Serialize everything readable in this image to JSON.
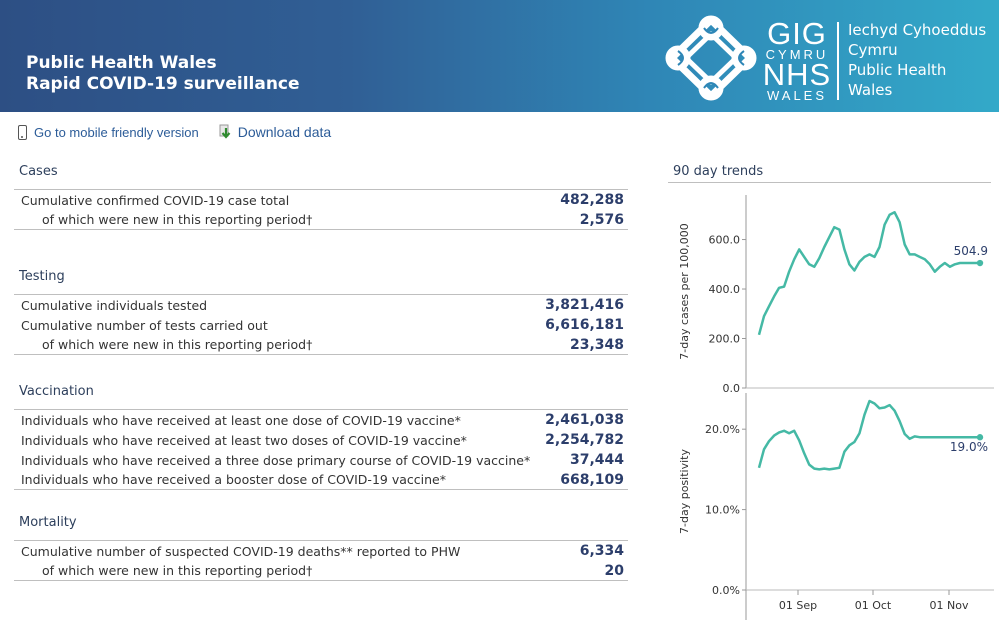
{
  "header": {
    "title_line1": "Public Health Wales",
    "title_line2": "Rapid COVID-19 surveillance",
    "logo_text": {
      "gig": "GIG",
      "cymru": "CYMRU",
      "nhs": "NHS",
      "wales": "WALES"
    },
    "org_names": [
      "Iechyd Cyhoeddus",
      "Cymru",
      "Public Health",
      "Wales"
    ]
  },
  "links": {
    "mobile": "Go to mobile friendly version",
    "download": "Download data"
  },
  "sections": {
    "cases": {
      "title": "Cases",
      "rows": [
        {
          "label": "Cumulative confirmed COVID-19 case total",
          "value": "482,288"
        },
        {
          "label": "of which were new in this reporting period†",
          "value": "2,576"
        }
      ]
    },
    "testing": {
      "title": "Testing",
      "rows": [
        {
          "label": "Cumulative individuals tested",
          "value": "3,821,416"
        },
        {
          "label": "Cumulative number of tests carried out",
          "value": "6,616,181"
        },
        {
          "label": "of which were new in this reporting period†",
          "value": "23,348"
        }
      ]
    },
    "vaccination": {
      "title": "Vaccination",
      "rows": [
        {
          "label": "Individuals who have received at least one dose of COVID-19 vaccine*",
          "value": "2,461,038"
        },
        {
          "label": "Individuals who have received at least two doses of COVID-19 vaccine*",
          "value": "2,254,782"
        },
        {
          "label": "Individuals who have received a three dose primary course of COVID-19 vaccine*",
          "value": "37,444"
        },
        {
          "label": "Individuals who have received a booster dose of COVID-19 vaccine*",
          "value": "668,109"
        }
      ]
    },
    "mortality": {
      "title": "Mortality",
      "rows": [
        {
          "label": "Cumulative number of suspected COVID-19 deaths** reported to PHW",
          "value": "6,334"
        },
        {
          "label": "of which were new in this reporting period†",
          "value": "20"
        }
      ]
    }
  },
  "trends": {
    "title": "90 day trends"
  },
  "chart_data": [
    {
      "type": "line",
      "title": "90 day trends",
      "ylabel": "7-day cases per 100,000",
      "ylim": [
        0,
        780
      ],
      "yticks": [
        0,
        200,
        400,
        600
      ],
      "ytick_labels": [
        "0.0",
        "200.0",
        "400.0",
        "600.0"
      ],
      "xtick_labels": [
        "01 Sep",
        "01 Oct",
        "01 Nov"
      ],
      "end_label": "504.9",
      "color": "#45b9a5",
      "x": [
        0,
        2,
        4,
        6,
        8,
        10,
        12,
        14,
        16,
        18,
        20,
        22,
        24,
        26,
        28,
        30,
        32,
        34,
        36,
        38,
        40,
        42,
        44,
        46,
        48,
        50,
        52,
        54,
        56,
        58,
        60,
        62,
        64,
        66,
        68,
        70,
        72,
        74,
        76,
        78,
        80,
        82,
        84,
        86,
        88
      ],
      "values": [
        215,
        290,
        330,
        370,
        405,
        410,
        470,
        520,
        560,
        530,
        500,
        490,
        525,
        570,
        610,
        650,
        640,
        560,
        500,
        475,
        510,
        530,
        540,
        530,
        570,
        660,
        700,
        710,
        670,
        580,
        540,
        540,
        530,
        520,
        500,
        470,
        490,
        505,
        490,
        500,
        505,
        505,
        505,
        505,
        505
      ]
    },
    {
      "type": "line",
      "ylabel": "7-day positivity",
      "ylim": [
        0,
        24.5
      ],
      "yticks": [
        0,
        10,
        20
      ],
      "ytick_labels": [
        "0.0%",
        "10.0%",
        "20.0%"
      ],
      "xtick_labels": [
        "01 Sep",
        "01 Oct",
        "01 Nov"
      ],
      "end_label": "19.0%",
      "color": "#45b9a5",
      "x": [
        0,
        2,
        4,
        6,
        8,
        10,
        12,
        14,
        16,
        18,
        20,
        22,
        24,
        26,
        28,
        30,
        32,
        34,
        36,
        38,
        40,
        42,
        44,
        46,
        48,
        50,
        52,
        54,
        56,
        58,
        60,
        62,
        64,
        66,
        68,
        70,
        72,
        74,
        76,
        78,
        80,
        82,
        84,
        86,
        88
      ],
      "values": [
        15.2,
        17.5,
        18.5,
        19.2,
        19.6,
        19.8,
        19.5,
        19.8,
        18.6,
        17.0,
        15.6,
        15.1,
        15.0,
        15.1,
        15.0,
        15.1,
        15.2,
        17.2,
        18.0,
        18.4,
        19.5,
        21.8,
        23.5,
        23.2,
        22.6,
        22.7,
        23.0,
        22.3,
        21.0,
        19.4,
        18.8,
        19.1,
        19.0,
        19.0,
        19.0,
        19.0,
        19.0,
        19.0,
        19.0,
        19.0,
        19.0,
        19.0,
        19.0,
        19.0,
        19.0
      ]
    }
  ]
}
